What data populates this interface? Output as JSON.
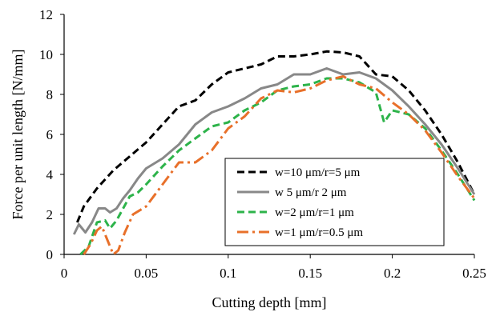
{
  "chart_data": {
    "type": "line",
    "title": "",
    "xlabel": "Cutting depth [mm]",
    "ylabel": "Force per unit length [N/mm]",
    "xlim": [
      0,
      0.25
    ],
    "ylim": [
      0,
      12
    ],
    "xticks": [
      "0",
      "0.05",
      "0.1",
      "0.15",
      "0.2",
      "0.25"
    ],
    "yticks": [
      "0",
      "2",
      "4",
      "6",
      "8",
      "10",
      "12"
    ],
    "grid": false,
    "legend_position": "lower-right",
    "series": [
      {
        "name": "w=10 μm/r=5 μm",
        "color": "#000000",
        "dash": "dashed",
        "points": [
          [
            0.008,
            1.6
          ],
          [
            0.012,
            2.4
          ],
          [
            0.02,
            3.3
          ],
          [
            0.03,
            4.2
          ],
          [
            0.04,
            4.9
          ],
          [
            0.05,
            5.6
          ],
          [
            0.06,
            6.5
          ],
          [
            0.07,
            7.4
          ],
          [
            0.08,
            7.7
          ],
          [
            0.09,
            8.5
          ],
          [
            0.1,
            9.1
          ],
          [
            0.11,
            9.3
          ],
          [
            0.12,
            9.5
          ],
          [
            0.13,
            9.9
          ],
          [
            0.14,
            9.9
          ],
          [
            0.15,
            10.0
          ],
          [
            0.16,
            10.15
          ],
          [
            0.17,
            10.1
          ],
          [
            0.18,
            9.9
          ],
          [
            0.19,
            9.0
          ],
          [
            0.2,
            8.9
          ],
          [
            0.21,
            8.2
          ],
          [
            0.22,
            7.2
          ],
          [
            0.23,
            6.0
          ],
          [
            0.24,
            4.6
          ],
          [
            0.25,
            3.0
          ]
        ]
      },
      {
        "name": "w 5 μm/r 2 μm",
        "color": "#888888",
        "dash": "solid",
        "points": [
          [
            0.006,
            1.0
          ],
          [
            0.009,
            1.5
          ],
          [
            0.013,
            1.1
          ],
          [
            0.017,
            1.6
          ],
          [
            0.021,
            2.3
          ],
          [
            0.025,
            2.3
          ],
          [
            0.028,
            2.1
          ],
          [
            0.032,
            2.3
          ],
          [
            0.036,
            2.8
          ],
          [
            0.04,
            3.2
          ],
          [
            0.045,
            3.8
          ],
          [
            0.05,
            4.3
          ],
          [
            0.06,
            4.8
          ],
          [
            0.07,
            5.5
          ],
          [
            0.08,
            6.5
          ],
          [
            0.09,
            7.1
          ],
          [
            0.1,
            7.4
          ],
          [
            0.11,
            7.8
          ],
          [
            0.12,
            8.3
          ],
          [
            0.13,
            8.5
          ],
          [
            0.14,
            9.0
          ],
          [
            0.15,
            9.0
          ],
          [
            0.16,
            9.3
          ],
          [
            0.17,
            9.0
          ],
          [
            0.18,
            9.1
          ],
          [
            0.19,
            8.8
          ],
          [
            0.2,
            8.2
          ],
          [
            0.21,
            7.4
          ],
          [
            0.22,
            6.5
          ],
          [
            0.23,
            5.5
          ],
          [
            0.24,
            4.3
          ],
          [
            0.25,
            3.0
          ]
        ]
      },
      {
        "name": "w=2 μm/r=1 μm",
        "color": "#2db34a",
        "dash": "dashed",
        "points": [
          [
            0.01,
            0.0
          ],
          [
            0.015,
            0.4
          ],
          [
            0.02,
            1.6
          ],
          [
            0.025,
            1.7
          ],
          [
            0.028,
            1.3
          ],
          [
            0.032,
            1.7
          ],
          [
            0.036,
            2.3
          ],
          [
            0.04,
            2.9
          ],
          [
            0.045,
            3.1
          ],
          [
            0.05,
            3.5
          ],
          [
            0.06,
            4.4
          ],
          [
            0.07,
            5.2
          ],
          [
            0.08,
            5.8
          ],
          [
            0.09,
            6.4
          ],
          [
            0.1,
            6.6
          ],
          [
            0.11,
            7.2
          ],
          [
            0.12,
            7.6
          ],
          [
            0.13,
            8.2
          ],
          [
            0.14,
            8.4
          ],
          [
            0.15,
            8.5
          ],
          [
            0.16,
            8.8
          ],
          [
            0.17,
            8.8
          ],
          [
            0.18,
            8.6
          ],
          [
            0.19,
            8.1
          ],
          [
            0.195,
            6.6
          ],
          [
            0.2,
            7.2
          ],
          [
            0.21,
            7.0
          ],
          [
            0.22,
            6.3
          ],
          [
            0.23,
            5.2
          ],
          [
            0.24,
            4.0
          ],
          [
            0.25,
            2.7
          ]
        ]
      },
      {
        "name": "w=1 μm/r=0.5 μm",
        "color": "#e8702a",
        "dash": "dashdot",
        "points": [
          [
            0.012,
            0.0
          ],
          [
            0.016,
            0.5
          ],
          [
            0.02,
            1.2
          ],
          [
            0.023,
            1.4
          ],
          [
            0.026,
            0.8
          ],
          [
            0.03,
            0.0
          ],
          [
            0.033,
            0.2
          ],
          [
            0.037,
            1.1
          ],
          [
            0.042,
            2.0
          ],
          [
            0.05,
            2.4
          ],
          [
            0.06,
            3.5
          ],
          [
            0.07,
            4.6
          ],
          [
            0.08,
            4.6
          ],
          [
            0.09,
            5.2
          ],
          [
            0.1,
            6.3
          ],
          [
            0.11,
            6.9
          ],
          [
            0.12,
            7.8
          ],
          [
            0.13,
            8.2
          ],
          [
            0.14,
            8.1
          ],
          [
            0.15,
            8.3
          ],
          [
            0.16,
            8.7
          ],
          [
            0.17,
            8.9
          ],
          [
            0.18,
            8.5
          ],
          [
            0.19,
            8.3
          ],
          [
            0.2,
            7.6
          ],
          [
            0.21,
            7.0
          ],
          [
            0.22,
            6.2
          ],
          [
            0.23,
            5.1
          ],
          [
            0.24,
            3.9
          ],
          [
            0.25,
            2.8
          ]
        ]
      }
    ]
  }
}
